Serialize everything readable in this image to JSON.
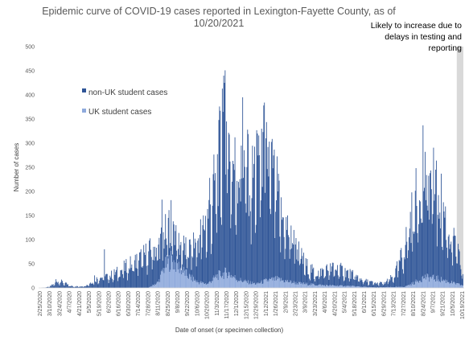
{
  "chart_data": {
    "type": "bar",
    "stacked": true,
    "title_lines": [
      "Epidemic curve of COVID-19 cases reported in Lexington-Fayette County, as of",
      "10/20/2021"
    ],
    "xlabel": "Date of onset (or specimen collection)",
    "ylabel": "Number of cases",
    "ylim": [
      0,
      500
    ],
    "yticks": [
      0,
      50,
      100,
      150,
      200,
      250,
      300,
      350,
      400,
      450,
      500
    ],
    "grid": false,
    "legend_placement": "upper-left",
    "x_start_date": "2/25/2020",
    "x_end_date": "10/19/2021",
    "xtick_labels": [
      "2/25/2020",
      "3/10/2020",
      "3/24/2020",
      "4/7/2020",
      "4/21/2020",
      "5/5/2020",
      "5/19/2020",
      "6/2/2020",
      "6/16/2020",
      "6/30/2020",
      "7/14/2020",
      "7/28/2020",
      "8/11/2020",
      "8/25/2020",
      "9/8/2020",
      "9/22/2020",
      "10/6/2020",
      "10/20/2020",
      "11/3/2020",
      "11/17/2020",
      "12/1/2020",
      "12/15/2020",
      "12/29/2020",
      "1/12/2021",
      "1/26/2021",
      "2/9/2021",
      "2/23/2021",
      "3/9/2021",
      "3/23/2021",
      "4/6/2021",
      "4/20/2021",
      "5/4/2021",
      "5/18/2021",
      "6/1/2021",
      "6/15/2021",
      "6/29/2021",
      "7/13/2021",
      "7/27/2021",
      "8/10/2021",
      "8/24/2021",
      "9/7/2021",
      "9/21/2021",
      "10/5/2021",
      "10/19/2021"
    ],
    "series": [
      {
        "name": "non-UK student cases",
        "color": "#2f5597"
      },
      {
        "name": "UK student cases",
        "color": "#8faadc"
      }
    ],
    "annotation": {
      "lines": [
        "Likely to increase due to",
        "delays in testing and",
        "reporting"
      ],
      "shaded_from_date": "10/6/2021",
      "shade_color": "#d0d0d0"
    },
    "total_anchors": [
      [
        "2/25/2020",
        0
      ],
      [
        "3/8/2020",
        2
      ],
      [
        "3/15/2020",
        8
      ],
      [
        "3/20/2020",
        15
      ],
      [
        "3/28/2020",
        12
      ],
      [
        "4/7/2020",
        4
      ],
      [
        "4/21/2020",
        3
      ],
      [
        "5/1/2020",
        6
      ],
      [
        "5/10/2020",
        15
      ],
      [
        "5/19/2020",
        22
      ],
      [
        "6/2/2020",
        25
      ],
      [
        "6/16/2020",
        35
      ],
      [
        "6/30/2020",
        48
      ],
      [
        "7/14/2020",
        60
      ],
      [
        "7/28/2020",
        75
      ],
      [
        "8/11/2020",
        90
      ],
      [
        "8/20/2020",
        110
      ],
      [
        "8/29/2020",
        140
      ],
      [
        "9/8/2020",
        95
      ],
      [
        "9/22/2020",
        78
      ],
      [
        "10/6/2020",
        100
      ],
      [
        "10/20/2020",
        150
      ],
      [
        "10/28/2020",
        200
      ],
      [
        "11/3/2020",
        250
      ],
      [
        "11/8/2020",
        300
      ],
      [
        "11/12/2020",
        350
      ],
      [
        "11/17/2020",
        310
      ],
      [
        "11/24/2020",
        265
      ],
      [
        "12/1/2020",
        245
      ],
      [
        "12/8/2020",
        260
      ],
      [
        "12/15/2020",
        240
      ],
      [
        "12/22/2020",
        220
      ],
      [
        "12/29/2020",
        280
      ],
      [
        "1/5/2021",
        305
      ],
      [
        "1/12/2021",
        285
      ],
      [
        "1/19/2021",
        245
      ],
      [
        "1/26/2021",
        210
      ],
      [
        "2/2/2021",
        150
      ],
      [
        "2/9/2021",
        130
      ],
      [
        "2/16/2021",
        110
      ],
      [
        "2/23/2021",
        85
      ],
      [
        "3/9/2021",
        48
      ],
      [
        "3/23/2021",
        30
      ],
      [
        "4/6/2021",
        38
      ],
      [
        "4/20/2021",
        42
      ],
      [
        "5/4/2021",
        35
      ],
      [
        "5/18/2021",
        25
      ],
      [
        "6/1/2021",
        15
      ],
      [
        "6/15/2021",
        10
      ],
      [
        "6/29/2021",
        10
      ],
      [
        "7/13/2021",
        25
      ],
      [
        "7/27/2021",
        80
      ],
      [
        "8/10/2021",
        170
      ],
      [
        "8/24/2021",
        230
      ],
      [
        "9/1/2021",
        225
      ],
      [
        "9/7/2021",
        215
      ],
      [
        "9/14/2021",
        200
      ],
      [
        "9/21/2021",
        165
      ],
      [
        "9/28/2021",
        120
      ],
      [
        "10/5/2021",
        95
      ],
      [
        "10/12/2021",
        70
      ],
      [
        "10/19/2021",
        30
      ]
    ],
    "uk_anchors": [
      [
        "2/25/2020",
        0
      ],
      [
        "7/28/2020",
        0
      ],
      [
        "8/11/2020",
        12
      ],
      [
        "8/20/2020",
        45
      ],
      [
        "8/29/2020",
        58
      ],
      [
        "9/8/2020",
        45
      ],
      [
        "9/22/2020",
        25
      ],
      [
        "10/6/2020",
        12
      ],
      [
        "10/20/2020",
        8
      ],
      [
        "11/3/2020",
        25
      ],
      [
        "11/17/2020",
        32
      ],
      [
        "12/1/2020",
        18
      ],
      [
        "12/15/2020",
        12
      ],
      [
        "12/29/2020",
        8
      ],
      [
        "1/12/2021",
        15
      ],
      [
        "1/26/2021",
        18
      ],
      [
        "2/9/2021",
        14
      ],
      [
        "2/23/2021",
        10
      ],
      [
        "3/9/2021",
        8
      ],
      [
        "4/6/2021",
        5
      ],
      [
        "5/4/2021",
        4
      ],
      [
        "5/18/2021",
        3
      ],
      [
        "6/15/2021",
        1
      ],
      [
        "7/27/2021",
        2
      ],
      [
        "8/10/2021",
        10
      ],
      [
        "8/24/2021",
        22
      ],
      [
        "9/7/2021",
        20
      ],
      [
        "9/21/2021",
        16
      ],
      [
        "10/5/2021",
        10
      ],
      [
        "10/19/2021",
        5
      ]
    ],
    "spikes": [
      [
        "3/18/2020",
        18
      ],
      [
        "5/12/2020",
        26
      ],
      [
        "5/26/2020",
        80
      ],
      [
        "8/16/2020",
        183
      ],
      [
        "9/1/2020",
        138
      ],
      [
        "9/5/2020",
        130
      ],
      [
        "10/23/2020",
        228
      ],
      [
        "11/5/2020",
        348
      ],
      [
        "11/10/2020",
        413
      ],
      [
        "11/12/2020",
        440
      ],
      [
        "11/13/2020",
        425
      ],
      [
        "11/16/2020",
        345
      ],
      [
        "12/7/2020",
        295
      ],
      [
        "12/9/2020",
        395
      ],
      [
        "12/16/2020",
        328
      ],
      [
        "12/30/2020",
        320
      ],
      [
        "1/5/2021",
        330
      ],
      [
        "1/7/2021",
        323
      ],
      [
        "1/11/2021",
        310
      ],
      [
        "1/21/2021",
        248
      ],
      [
        "2/22/2021",
        90
      ],
      [
        "4/17/2021",
        52
      ],
      [
        "4/28/2021",
        52
      ],
      [
        "8/23/2021",
        337
      ],
      [
        "8/26/2021",
        282
      ],
      [
        "9/10/2021",
        245
      ],
      [
        "10/8/2021",
        108
      ]
    ]
  }
}
